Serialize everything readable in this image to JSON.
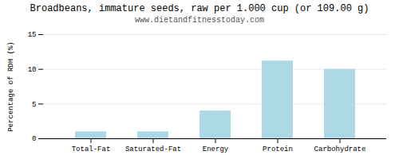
{
  "chart_data": {
    "type": "bar",
    "title": "Broadbeans, immature seeds, raw per 1.000 cup (or 109.00 g)",
    "subtitle": "www.dietandfitnesstoday.com",
    "categories": [
      "Total-Fat",
      "Saturated-Fat",
      "Energy",
      "Protein",
      "Carbohydrate"
    ],
    "values": [
      1.0,
      1.0,
      4.0,
      11.2,
      10.0
    ],
    "color": "#add8e6",
    "ylabel": "Percentage of RDH (%)",
    "ylim": [
      0,
      15
    ],
    "yticks": [
      0,
      5,
      10,
      15
    ],
    "grid": true
  }
}
